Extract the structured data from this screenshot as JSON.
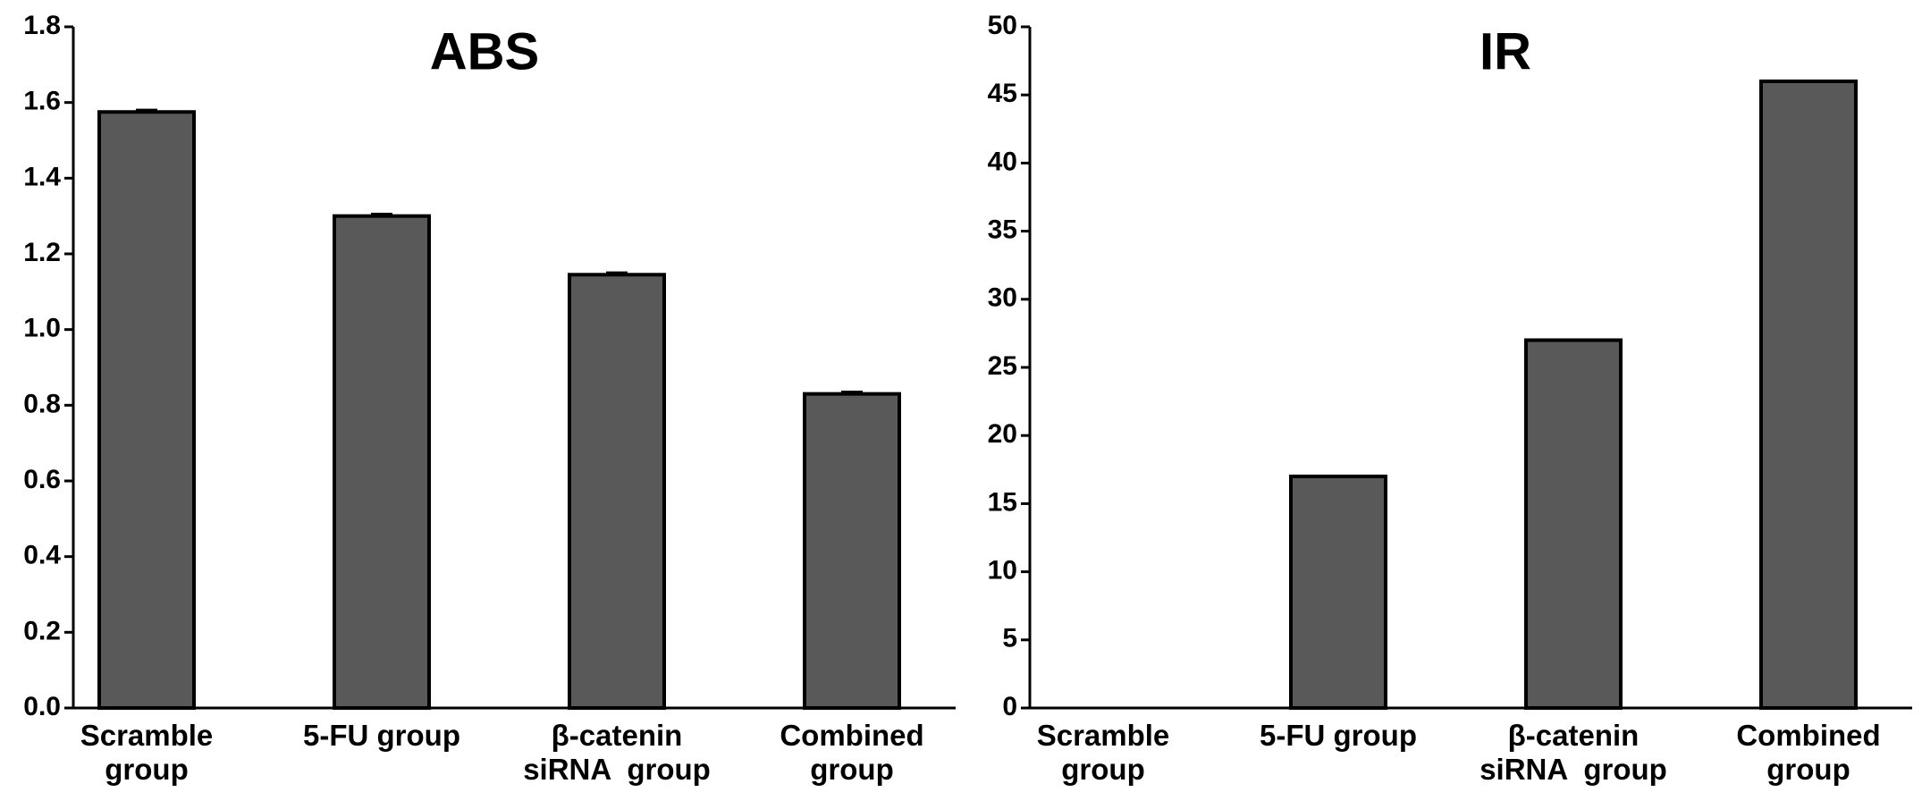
{
  "chart_data": [
    {
      "type": "bar",
      "title": "ABS",
      "categories": [
        "Scramble\ngroup",
        "5-FU group",
        "β-catenin\nsiRNA  group",
        "Combined\ngroup"
      ],
      "values": [
        1.575,
        1.3,
        1.145,
        0.83
      ],
      "errors": [
        0.005,
        0.005,
        0.005,
        0.005
      ],
      "color": "#595959",
      "ylim": [
        0,
        1.8
      ],
      "yticks": [
        {
          "value": 0,
          "label": "0.0"
        },
        0.2,
        0.4,
        0.6,
        0.8,
        {
          "value": 1,
          "label": "1.0"
        },
        1.2,
        1.4,
        1.6,
        1.8
      ]
    },
    {
      "type": "bar",
      "title": "IR",
      "categories": [
        "Scramble\ngroup",
        "5-FU group",
        "β-catenin\nsiRNA  group",
        "Combined\ngroup"
      ],
      "values": [
        0,
        17,
        27,
        46
      ],
      "color": "#595959",
      "ylim": [
        0,
        50
      ],
      "yticks": [
        0,
        5,
        10,
        15,
        20,
        25,
        30,
        35,
        40,
        45,
        50
      ]
    }
  ]
}
